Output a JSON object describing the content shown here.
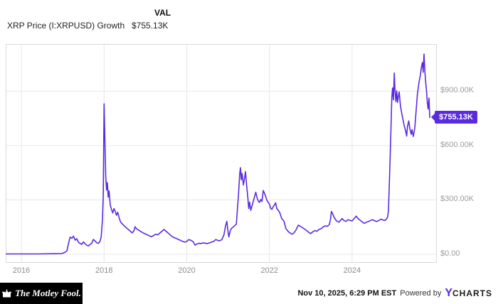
{
  "header": {
    "column_label": "VAL",
    "series_label": "XRP Price (I:XRPUSD) Growth",
    "series_value": "$755.13K"
  },
  "badge": {
    "label": "$755.13K"
  },
  "footer": {
    "brand": "The Motley Fool.",
    "timestamp": "Nov 10, 2025, 6:29 PM EST",
    "powered_by": "Powered by",
    "ycharts_y": "Y",
    "ycharts_rest": "CHARTS"
  },
  "colors": {
    "line": "#5b2be0",
    "badge_bg": "#5b2be0",
    "grid": "#e7e7e7",
    "plot_border": "#d9d9d9",
    "axis_text": "#9c9c9c"
  },
  "chart_data": {
    "type": "line",
    "title": "XRP Price (I:XRPUSD) Growth",
    "legend": [
      "XRP Price (I:XRPUSD) Growth"
    ],
    "current_value": 755.13,
    "value_unit": "thousand USD",
    "xlabel": "",
    "ylabel": "",
    "grid": true,
    "xlim": [
      2015.62,
      2026.05
    ],
    "ylim": [
      0,
      1160
    ],
    "x_ticks": [
      2016,
      2018,
      2020,
      2022,
      2024
    ],
    "y_ticks": [
      {
        "value": 0,
        "label": "$0.00"
      },
      {
        "value": 300,
        "label": "$300.00K"
      },
      {
        "value": 600,
        "label": "$600.00K"
      },
      {
        "value": 900,
        "label": "$900.00K"
      }
    ],
    "points": [
      [
        2015.62,
        2
      ],
      [
        2016.0,
        2
      ],
      [
        2016.4,
        2
      ],
      [
        2016.8,
        3
      ],
      [
        2016.95,
        4
      ],
      [
        2017.0,
        6
      ],
      [
        2017.05,
        10
      ],
      [
        2017.1,
        18
      ],
      [
        2017.14,
        60
      ],
      [
        2017.18,
        95
      ],
      [
        2017.22,
        88
      ],
      [
        2017.26,
        100
      ],
      [
        2017.3,
        78
      ],
      [
        2017.34,
        86
      ],
      [
        2017.38,
        66
      ],
      [
        2017.42,
        60
      ],
      [
        2017.46,
        55
      ],
      [
        2017.5,
        68
      ],
      [
        2017.54,
        58
      ],
      [
        2017.58,
        50
      ],
      [
        2017.62,
        46
      ],
      [
        2017.66,
        54
      ],
      [
        2017.7,
        60
      ],
      [
        2017.74,
        82
      ],
      [
        2017.78,
        74
      ],
      [
        2017.82,
        64
      ],
      [
        2017.86,
        60
      ],
      [
        2017.9,
        70
      ],
      [
        2017.93,
        95
      ],
      [
        2017.96,
        190
      ],
      [
        2017.98,
        320
      ],
      [
        2018.0,
        830
      ],
      [
        2018.02,
        640
      ],
      [
        2018.04,
        430
      ],
      [
        2018.06,
        355
      ],
      [
        2018.08,
        395
      ],
      [
        2018.1,
        315
      ],
      [
        2018.12,
        350
      ],
      [
        2018.15,
        272
      ],
      [
        2018.18,
        248
      ],
      [
        2018.21,
        228
      ],
      [
        2018.24,
        252
      ],
      [
        2018.27,
        238
      ],
      [
        2018.3,
        215
      ],
      [
        2018.33,
        232
      ],
      [
        2018.36,
        205
      ],
      [
        2018.4,
        178
      ],
      [
        2018.44,
        168
      ],
      [
        2018.48,
        158
      ],
      [
        2018.52,
        150
      ],
      [
        2018.56,
        142
      ],
      [
        2018.6,
        135
      ],
      [
        2018.64,
        126
      ],
      [
        2018.68,
        118
      ],
      [
        2018.72,
        128
      ],
      [
        2018.75,
        152
      ],
      [
        2018.78,
        142
      ],
      [
        2018.82,
        136
      ],
      [
        2018.86,
        130
      ],
      [
        2018.9,
        124
      ],
      [
        2018.95,
        117
      ],
      [
        2019.0,
        112
      ],
      [
        2019.05,
        107
      ],
      [
        2019.1,
        101
      ],
      [
        2019.15,
        97
      ],
      [
        2019.2,
        104
      ],
      [
        2019.25,
        111
      ],
      [
        2019.3,
        107
      ],
      [
        2019.35,
        117
      ],
      [
        2019.4,
        127
      ],
      [
        2019.45,
        137
      ],
      [
        2019.5,
        127
      ],
      [
        2019.55,
        117
      ],
      [
        2019.6,
        107
      ],
      [
        2019.65,
        97
      ],
      [
        2019.7,
        91
      ],
      [
        2019.75,
        87
      ],
      [
        2019.8,
        81
      ],
      [
        2019.85,
        77
      ],
      [
        2019.9,
        71
      ],
      [
        2019.95,
        67
      ],
      [
        2020.0,
        71
      ],
      [
        2020.05,
        81
      ],
      [
        2020.1,
        77
      ],
      [
        2020.15,
        71
      ],
      [
        2020.2,
        51
      ],
      [
        2020.25,
        57
      ],
      [
        2020.3,
        61
      ],
      [
        2020.35,
        59
      ],
      [
        2020.4,
        63
      ],
      [
        2020.45,
        61
      ],
      [
        2020.5,
        59
      ],
      [
        2020.55,
        63
      ],
      [
        2020.6,
        67
      ],
      [
        2020.65,
        71
      ],
      [
        2020.7,
        81
      ],
      [
        2020.75,
        77
      ],
      [
        2020.8,
        75
      ],
      [
        2020.85,
        81
      ],
      [
        2020.9,
        108
      ],
      [
        2020.94,
        158
      ],
      [
        2020.97,
        182
      ],
      [
        2021.0,
        122
      ],
      [
        2021.02,
        96
      ],
      [
        2021.05,
        128
      ],
      [
        2021.08,
        142
      ],
      [
        2021.12,
        150
      ],
      [
        2021.16,
        158
      ],
      [
        2021.2,
        166
      ],
      [
        2021.22,
        232
      ],
      [
        2021.25,
        322
      ],
      [
        2021.28,
        442
      ],
      [
        2021.3,
        478
      ],
      [
        2021.32,
        412
      ],
      [
        2021.34,
        446
      ],
      [
        2021.37,
        382
      ],
      [
        2021.4,
        422
      ],
      [
        2021.42,
        456
      ],
      [
        2021.45,
        378
      ],
      [
        2021.48,
        308
      ],
      [
        2021.5,
        252
      ],
      [
        2021.52,
        288
      ],
      [
        2021.55,
        242
      ],
      [
        2021.58,
        268
      ],
      [
        2021.61,
        292
      ],
      [
        2021.64,
        318
      ],
      [
        2021.67,
        342
      ],
      [
        2021.7,
        312
      ],
      [
        2021.73,
        294
      ],
      [
        2021.76,
        286
      ],
      [
        2021.79,
        302
      ],
      [
        2021.82,
        292
      ],
      [
        2021.85,
        352
      ],
      [
        2021.88,
        338
      ],
      [
        2021.91,
        318
      ],
      [
        2021.94,
        298
      ],
      [
        2021.97,
        286
      ],
      [
        2022.0,
        278
      ],
      [
        2022.03,
        254
      ],
      [
        2022.06,
        248
      ],
      [
        2022.09,
        262
      ],
      [
        2022.12,
        272
      ],
      [
        2022.15,
        284
      ],
      [
        2022.18,
        252
      ],
      [
        2022.21,
        244
      ],
      [
        2022.25,
        230
      ],
      [
        2022.3,
        196
      ],
      [
        2022.35,
        184
      ],
      [
        2022.4,
        142
      ],
      [
        2022.45,
        127
      ],
      [
        2022.5,
        117
      ],
      [
        2022.55,
        111
      ],
      [
        2022.6,
        119
      ],
      [
        2022.65,
        137
      ],
      [
        2022.7,
        161
      ],
      [
        2022.75,
        154
      ],
      [
        2022.8,
        147
      ],
      [
        2022.85,
        139
      ],
      [
        2022.9,
        131
      ],
      [
        2022.95,
        121
      ],
      [
        2023.0,
        114
      ],
      [
        2023.05,
        124
      ],
      [
        2023.1,
        131
      ],
      [
        2023.15,
        127
      ],
      [
        2023.2,
        137
      ],
      [
        2023.25,
        141
      ],
      [
        2023.3,
        151
      ],
      [
        2023.35,
        157
      ],
      [
        2023.4,
        154
      ],
      [
        2023.45,
        164
      ],
      [
        2023.48,
        196
      ],
      [
        2023.5,
        236
      ],
      [
        2023.53,
        224
      ],
      [
        2023.56,
        206
      ],
      [
        2023.6,
        191
      ],
      [
        2023.64,
        181
      ],
      [
        2023.68,
        177
      ],
      [
        2023.72,
        187
      ],
      [
        2023.76,
        197
      ],
      [
        2023.8,
        187
      ],
      [
        2023.85,
        181
      ],
      [
        2023.9,
        191
      ],
      [
        2023.95,
        187
      ],
      [
        2024.0,
        184
      ],
      [
        2024.05,
        197
      ],
      [
        2024.1,
        211
      ],
      [
        2024.13,
        201
      ],
      [
        2024.16,
        194
      ],
      [
        2024.2,
        187
      ],
      [
        2024.25,
        177
      ],
      [
        2024.3,
        171
      ],
      [
        2024.35,
        177
      ],
      [
        2024.4,
        181
      ],
      [
        2024.45,
        187
      ],
      [
        2024.5,
        191
      ],
      [
        2024.55,
        184
      ],
      [
        2024.6,
        181
      ],
      [
        2024.65,
        187
      ],
      [
        2024.7,
        194
      ],
      [
        2024.75,
        189
      ],
      [
        2024.8,
        187
      ],
      [
        2024.83,
        194
      ],
      [
        2024.86,
        206
      ],
      [
        2024.88,
        242
      ],
      [
        2024.9,
        382
      ],
      [
        2024.92,
        524
      ],
      [
        2024.94,
        684
      ],
      [
        2024.96,
        862
      ],
      [
        2024.98,
        918
      ],
      [
        2025.0,
        852
      ],
      [
        2025.02,
        1000
      ],
      [
        2025.04,
        896
      ],
      [
        2025.06,
        842
      ],
      [
        2025.08,
        902
      ],
      [
        2025.1,
        838
      ],
      [
        2025.12,
        872
      ],
      [
        2025.14,
        896
      ],
      [
        2025.17,
        818
      ],
      [
        2025.2,
        780
      ],
      [
        2025.23,
        744
      ],
      [
        2025.26,
        710
      ],
      [
        2025.29,
        686
      ],
      [
        2025.32,
        652
      ],
      [
        2025.34,
        704
      ],
      [
        2025.37,
        736
      ],
      [
        2025.4,
        690
      ],
      [
        2025.43,
        662
      ],
      [
        2025.45,
        688
      ],
      [
        2025.48,
        650
      ],
      [
        2025.5,
        672
      ],
      [
        2025.52,
        704
      ],
      [
        2025.55,
        792
      ],
      [
        2025.58,
        882
      ],
      [
        2025.6,
        918
      ],
      [
        2025.62,
        950
      ],
      [
        2025.65,
        986
      ],
      [
        2025.67,
        1022
      ],
      [
        2025.7,
        1058
      ],
      [
        2025.72,
        1004
      ],
      [
        2025.74,
        1105
      ],
      [
        2025.76,
        1010
      ],
      [
        2025.78,
        952
      ],
      [
        2025.8,
        902
      ],
      [
        2025.82,
        840
      ],
      [
        2025.84,
        802
      ],
      [
        2025.86,
        862
      ],
      [
        2025.88,
        755.13
      ]
    ]
  }
}
